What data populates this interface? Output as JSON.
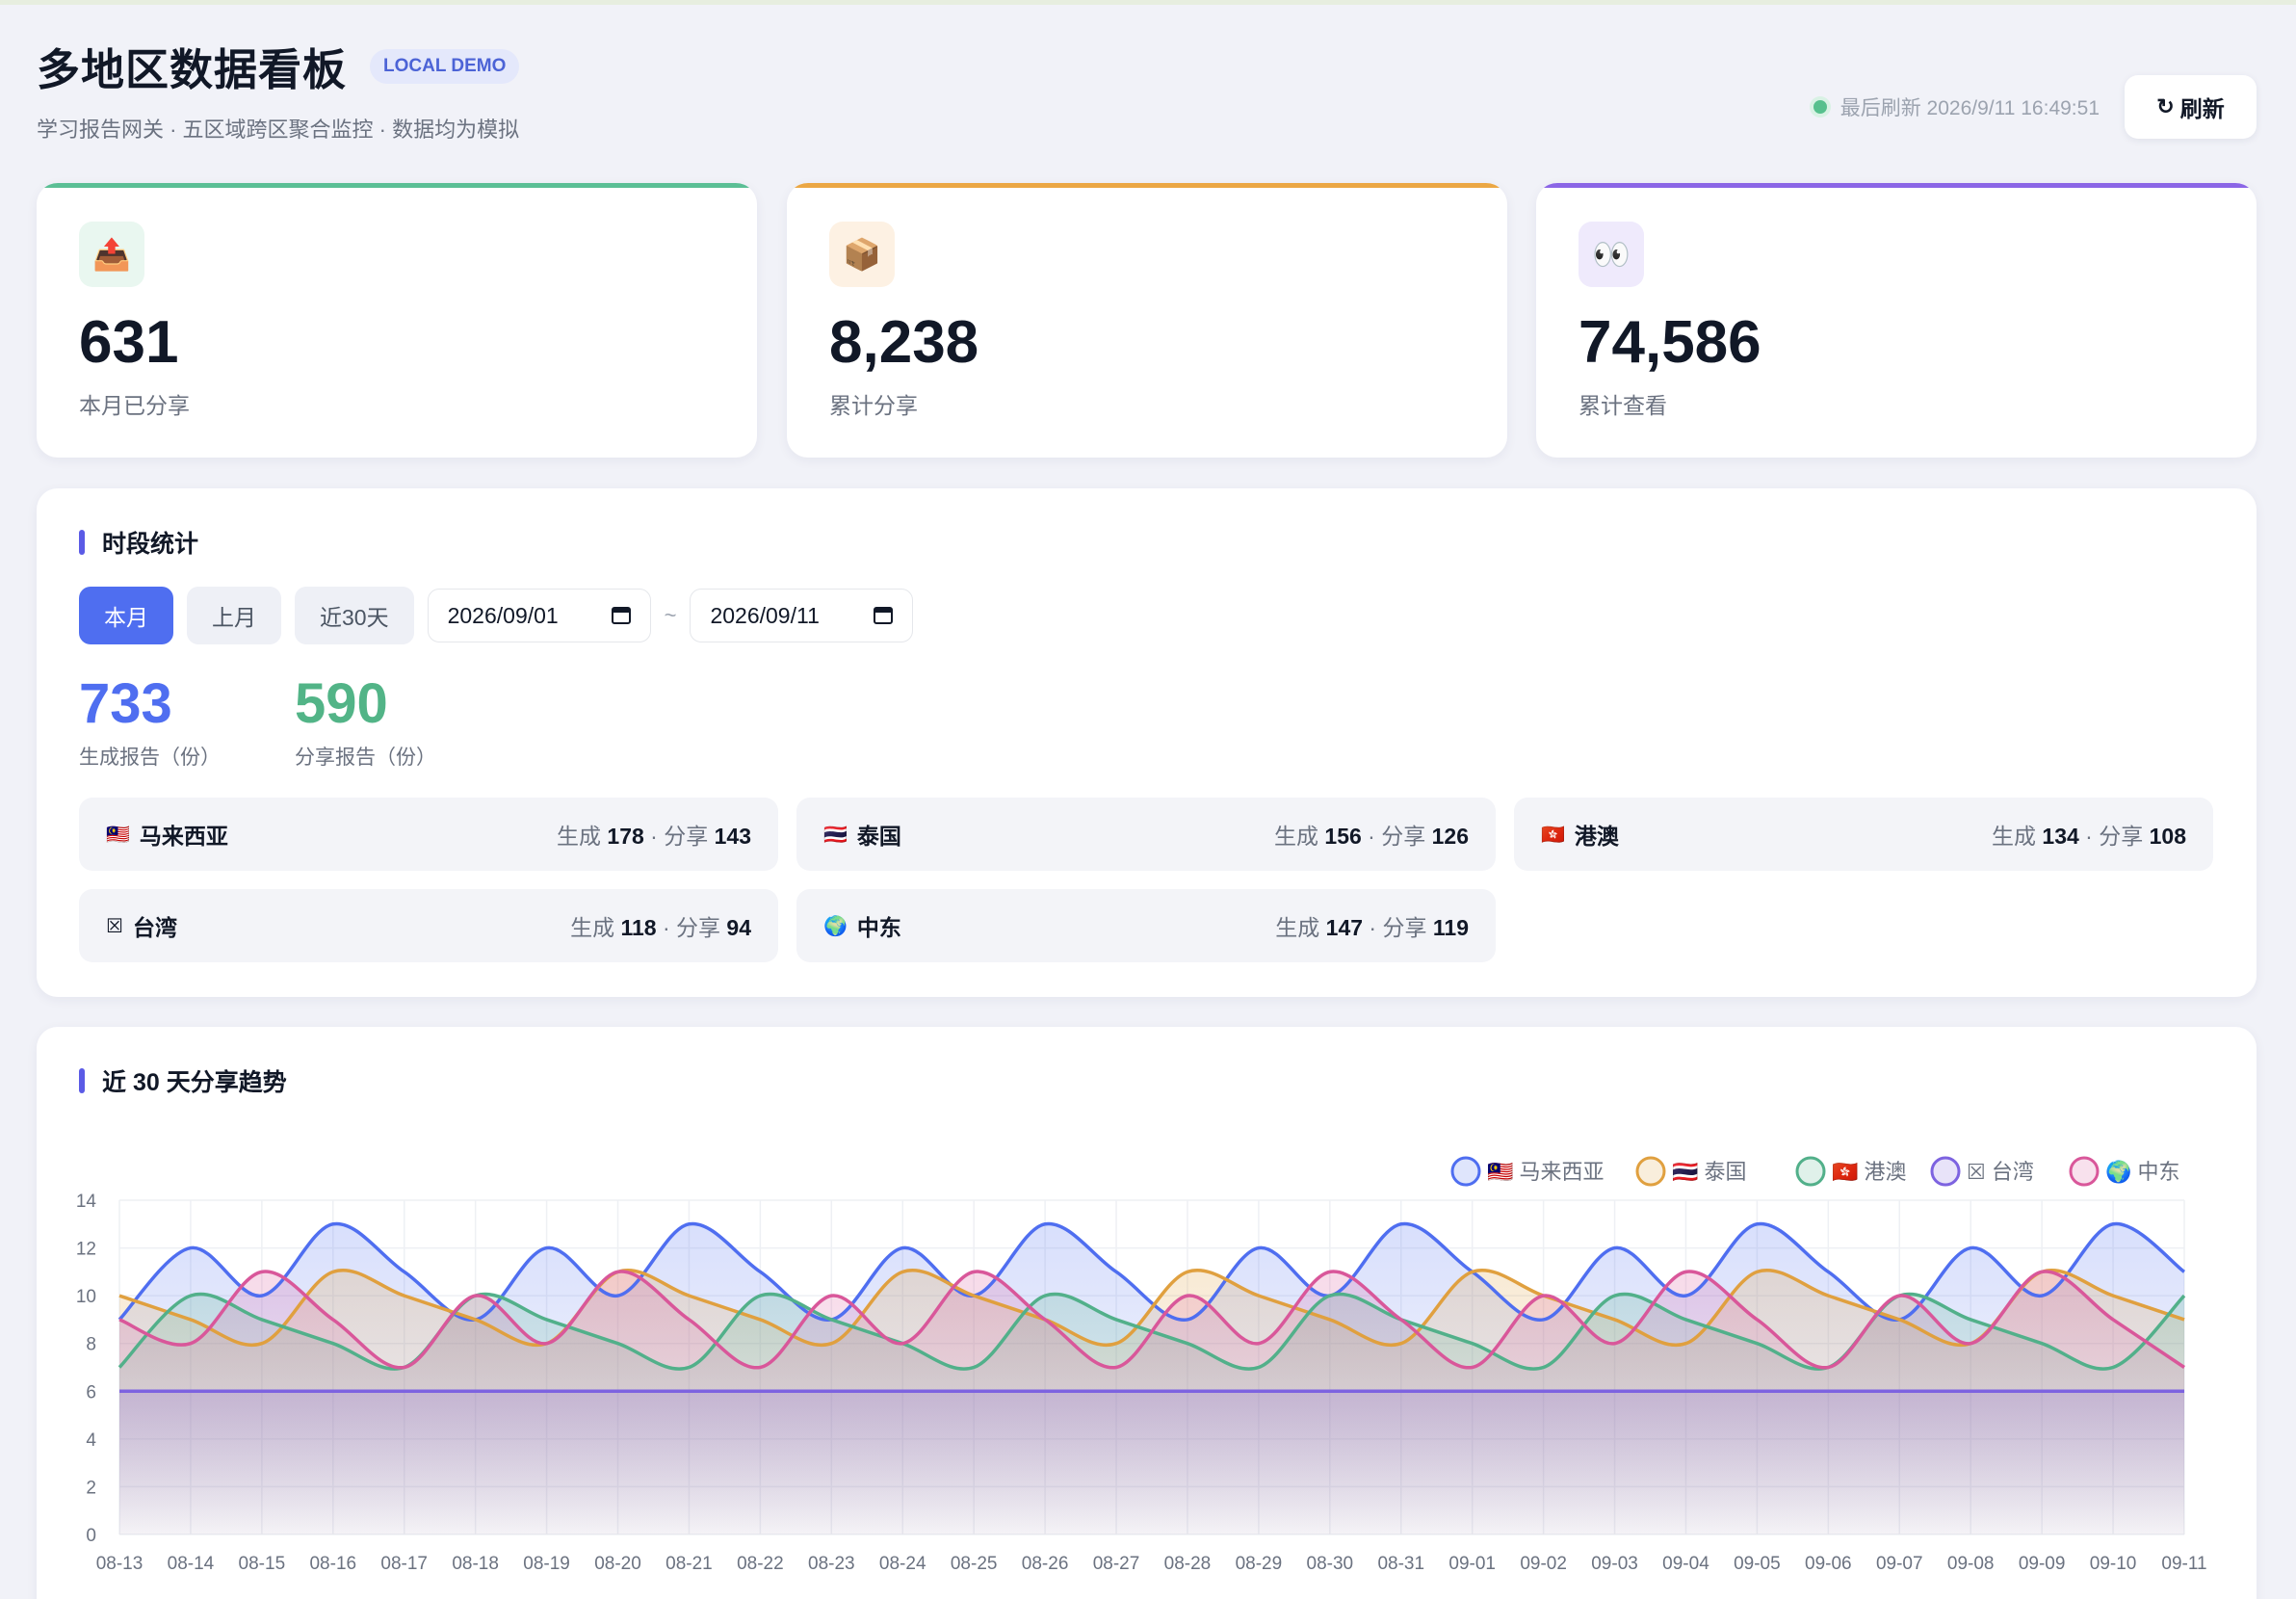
{
  "header": {
    "title": "多地区数据看板",
    "badge": "LOCAL DEMO",
    "subtitle": "学习报告网关 · 五区域跨区聚合监控 · 数据均为模拟",
    "last_refresh": "最后刷新 2026/9/11 16:49:51",
    "refresh_label": "刷新",
    "refresh_icon": "↻"
  },
  "kpis": [
    {
      "icon": "📤",
      "value": "631",
      "label": "本月已分享",
      "accent": "#5bbf95",
      "icon_bg": "#e9f7f0"
    },
    {
      "icon": "📦",
      "value": "8,238",
      "label": "累计分享",
      "accent": "#eba744",
      "icon_bg": "#fdf1e3"
    },
    {
      "icon": "👀",
      "value": "74,586",
      "label": "累计查看",
      "accent": "#8b66e6",
      "icon_bg": "#efeafc"
    }
  ],
  "period": {
    "title": "时段统计",
    "buttons": [
      "本月",
      "上月",
      "近30天"
    ],
    "active": "本月",
    "date_from": "2026/09/01",
    "date_to": "2026/09/11",
    "separator": "~",
    "generated": {
      "value": "733",
      "label": "生成报告（份）",
      "color": "#4f6ef0"
    },
    "shared": {
      "value": "590",
      "label": "分享报告（份）",
      "color": "#52b487"
    },
    "gen_label": "生成",
    "share_label": "分享",
    "regions": [
      {
        "flag": "🇲🇾",
        "name": "马来西亚",
        "gen": "178",
        "share": "143"
      },
      {
        "flag": "🇹🇭",
        "name": "泰国",
        "gen": "156",
        "share": "126"
      },
      {
        "flag": "🇭🇰",
        "name": "港澳",
        "gen": "134",
        "share": "108"
      },
      {
        "flag": "☒",
        "name": "台湾",
        "gen": "118",
        "share": "94"
      },
      {
        "flag": "🌍",
        "name": "中东",
        "gen": "147",
        "share": "119"
      }
    ]
  },
  "trend": {
    "title": "近 30 天分享趋势"
  },
  "chart_data": {
    "type": "line",
    "title": "近 30 天分享趋势",
    "x": [
      "08-13",
      "08-14",
      "08-15",
      "08-16",
      "08-17",
      "08-18",
      "08-19",
      "08-20",
      "08-21",
      "08-22",
      "08-23",
      "08-24",
      "08-25",
      "08-26",
      "08-27",
      "08-28",
      "08-29",
      "08-30",
      "08-31",
      "09-01",
      "09-02",
      "09-03",
      "09-04",
      "09-05",
      "09-06",
      "09-07",
      "09-08",
      "09-09",
      "09-10",
      "09-11"
    ],
    "ylim": [
      0,
      14
    ],
    "yticks": [
      0,
      2,
      4,
      6,
      8,
      10,
      12,
      14
    ],
    "grid": true,
    "legend": "top-right",
    "series": [
      {
        "name": "🇲🇾 马来西亚",
        "color": "#4f6ef0",
        "values": [
          9,
          12,
          10,
          13,
          11,
          9,
          12,
          10,
          13,
          11,
          9,
          12,
          10,
          13,
          11,
          9,
          12,
          10,
          13,
          11,
          9,
          12,
          10,
          13,
          11,
          9,
          12,
          10,
          13,
          11
        ]
      },
      {
        "name": "🇹🇭 泰国",
        "color": "#e0a03f",
        "values": [
          10,
          9,
          8,
          11,
          10,
          9,
          8,
          11,
          10,
          9,
          8,
          11,
          10,
          9,
          8,
          11,
          10,
          9,
          8,
          11,
          10,
          9,
          8,
          11,
          10,
          9,
          8,
          11,
          10,
          9
        ]
      },
      {
        "name": "🇭🇰 港澳",
        "color": "#52b08a",
        "values": [
          7,
          10,
          9,
          8,
          7,
          10,
          9,
          8,
          7,
          10,
          9,
          8,
          7,
          10,
          9,
          8,
          7,
          10,
          9,
          8,
          7,
          10,
          9,
          8,
          7,
          10,
          9,
          8,
          7,
          10
        ]
      },
      {
        "name": "☒ 台湾",
        "color": "#7d63e0",
        "values": [
          6,
          6,
          6,
          6,
          6,
          6,
          6,
          6,
          6,
          6,
          6,
          6,
          6,
          6,
          6,
          6,
          6,
          6,
          6,
          6,
          6,
          6,
          6,
          6,
          6,
          6,
          6,
          6,
          6,
          6
        ]
      },
      {
        "name": "🌍 中东",
        "color": "#d9579a",
        "values": [
          9,
          8,
          11,
          9,
          7,
          10,
          8,
          11,
          9,
          7,
          10,
          8,
          11,
          9,
          7,
          10,
          8,
          11,
          9,
          7,
          10,
          8,
          11,
          9,
          7,
          10,
          8,
          11,
          9,
          7
        ]
      }
    ]
  }
}
